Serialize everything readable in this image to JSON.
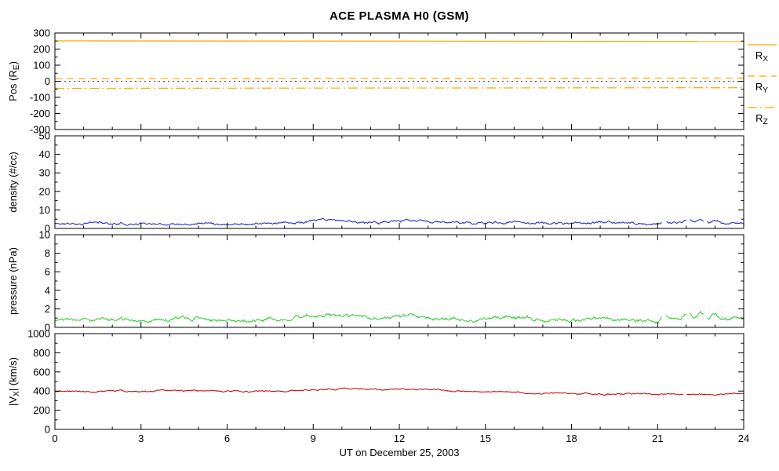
{
  "chart_data": {
    "type": "line",
    "title": "ACE PLASMA H0 (GSM)",
    "xlabel": "UT on December 25, 2003",
    "x_range": [
      0,
      24
    ],
    "x_ticks": [
      0,
      3,
      6,
      9,
      12,
      15,
      18,
      21,
      24
    ],
    "x_minor_step": 1,
    "frame_color": "#000000",
    "grid": false,
    "legend_position": "right-of-position-panel",
    "panels": [
      {
        "name": "position",
        "ylabel": "Pos (R_E)",
        "ylim": [
          -300,
          300
        ],
        "yticks": [
          -300,
          -200,
          -100,
          0,
          100,
          200,
          300
        ],
        "y_minor_step": 50,
        "series": [
          {
            "name": "rx",
            "label": "R_X",
            "color": "#FFA500",
            "style": "solid",
            "width": 1.3,
            "x": [
              0,
              24
            ],
            "values": [
              251,
              247
            ]
          },
          {
            "name": "ry",
            "label": "R_Y",
            "color": "#FFA500",
            "style": "dash",
            "width": 1.2,
            "x": [
              0,
              24
            ],
            "values": [
              16,
              20
            ]
          },
          {
            "name": "rz",
            "label": "R_Z",
            "color": "#FFA500",
            "style": "dashdot",
            "width": 1.2,
            "x": [
              0,
              24
            ],
            "values": [
              -44,
              -40
            ]
          },
          {
            "name": "zero-reference",
            "label": "",
            "color": "#000000",
            "style": "dot",
            "width": 0.8,
            "x": [
              0,
              24
            ],
            "values": [
              0,
              0
            ]
          }
        ],
        "legend": {
          "color": "#FFA500",
          "items": [
            {
              "label": "R_X",
              "style": "solid"
            },
            {
              "label": "R_Y",
              "style": "dash"
            },
            {
              "label": "R_Z",
              "style": "dashdot"
            }
          ]
        }
      },
      {
        "name": "density",
        "ylabel": "density (#/cc)",
        "ylim": [
          0,
          50
        ],
        "yticks": [
          0,
          10,
          20,
          30,
          40,
          50
        ],
        "y_minor_step": 5,
        "series": [
          {
            "name": "proton-density",
            "color": "#2222CC",
            "style": "solid",
            "width": 1,
            "noise": 0.5,
            "seed": 11,
            "anchors_x": [
              0,
              0.5,
              1,
              1.5,
              2,
              2.5,
              3,
              3.5,
              4,
              4.5,
              5,
              5.5,
              6,
              6.5,
              7,
              7.5,
              8,
              8.5,
              9,
              9.25,
              9.5,
              9.75,
              10,
              10.25,
              10.5,
              11,
              11.5,
              12,
              12.25,
              12.5,
              12.75,
              13,
              13.5,
              14,
              14.5,
              15,
              15.5,
              16,
              16.5,
              17,
              17.5,
              18,
              18.5,
              19,
              19.5,
              20,
              20.5,
              21,
              21.3,
              21.5,
              21.7,
              22,
              22.3,
              22.5,
              22.8,
              23,
              23.3,
              23.6,
              24
            ],
            "anchors_y": [
              2.6,
              2.4,
              2.8,
              3.2,
              2.7,
              2.5,
              2.6,
              2.8,
              2.7,
              2.9,
              3.1,
              2.8,
              2.6,
              2.5,
              2.7,
              2.6,
              2.8,
              3.2,
              3.8,
              4.2,
              4.5,
              4.3,
              4.0,
              3.8,
              3.5,
              3.3,
              3.6,
              3.7,
              3.9,
              4.1,
              3.8,
              3.6,
              3.3,
              3.0,
              2.9,
              2.8,
              3.2,
              3.6,
              3.2,
              2.9,
              2.8,
              2.7,
              3.0,
              3.3,
              3.0,
              2.8,
              2.6,
              2.5,
              4.0,
              3.2,
              2.6,
              4.8,
              3.4,
              5.2,
              3.0,
              4.5,
              2.7,
              3.3,
              3.0
            ],
            "gaps": [
              [
                21.15,
                21.3
              ],
              [
                22.0,
                22.12
              ],
              [
                22.62,
                22.72
              ]
            ]
          }
        ]
      },
      {
        "name": "pressure",
        "ylabel": "pressure (nPa)",
        "ylim": [
          0,
          10
        ],
        "yticks": [
          0,
          2,
          4,
          6,
          8,
          10
        ],
        "y_minor_step": 1,
        "series": [
          {
            "name": "flow-pressure",
            "color": "#33CC33",
            "style": "solid",
            "width": 1,
            "noise": 0.15,
            "seed": 23,
            "anchors_x": [
              0,
              0.5,
              1,
              1.5,
              2,
              2.5,
              3,
              3.5,
              4,
              4.5,
              5,
              5.5,
              6,
              6.5,
              7,
              7.5,
              8,
              8.5,
              9,
              9.25,
              9.5,
              9.75,
              10,
              10.25,
              10.5,
              11,
              11.5,
              12,
              12.25,
              12.5,
              12.75,
              13,
              13.5,
              14,
              14.5,
              15,
              15.5,
              16,
              16.5,
              17,
              17.5,
              18,
              18.5,
              19,
              19.5,
              20,
              20.5,
              21,
              21.3,
              21.5,
              21.7,
              22,
              22.3,
              22.5,
              22.8,
              23,
              23.3,
              23.6,
              24
            ],
            "anchors_y": [
              0.8,
              0.7,
              0.85,
              1.0,
              0.8,
              0.75,
              0.8,
              0.85,
              0.8,
              0.9,
              0.95,
              0.85,
              0.8,
              0.75,
              0.8,
              0.8,
              0.85,
              1.0,
              1.2,
              1.35,
              1.45,
              1.4,
              1.3,
              1.2,
              1.1,
              1.0,
              1.1,
              1.15,
              1.25,
              1.4,
              1.2,
              1.1,
              1.0,
              0.9,
              0.88,
              0.85,
              1.0,
              1.1,
              1.0,
              0.9,
              0.85,
              0.8,
              0.9,
              1.0,
              0.9,
              0.85,
              0.8,
              0.75,
              1.3,
              1.0,
              0.8,
              1.5,
              1.05,
              1.7,
              0.9,
              1.4,
              0.8,
              1.0,
              0.9
            ],
            "gaps": [
              [
                21.15,
                21.3
              ],
              [
                22.0,
                22.12
              ],
              [
                22.62,
                22.72
              ]
            ]
          }
        ]
      },
      {
        "name": "velocity",
        "ylabel": "|V_X| (km/s)",
        "ylim": [
          0,
          1000
        ],
        "yticks": [
          0,
          200,
          400,
          600,
          800,
          1000
        ],
        "y_minor_step": 100,
        "series": [
          {
            "name": "vx-speed",
            "color": "#CC0000",
            "style": "solid",
            "width": 1,
            "noise": 6,
            "seed": 37,
            "anchors_x": [
              0,
              1,
              2,
              3,
              4,
              5,
              6,
              7,
              8,
              9,
              9.5,
              10,
              10.5,
              11,
              11.5,
              12,
              12.5,
              13,
              13.5,
              14,
              15,
              16,
              17,
              18,
              19,
              20,
              21,
              21.5,
              22,
              22.5,
              23,
              23.5,
              24
            ],
            "anchors_y": [
              400,
              402,
              400,
              398,
              400,
              401,
              399,
              400,
              403,
              412,
              420,
              428,
              424,
              416,
              412,
              416,
              422,
              418,
              410,
              400,
              392,
              388,
              382,
              378,
              374,
              372,
              368,
              366,
              362,
              360,
              364,
              372,
              380
            ],
            "gaps": [
              [
                21.9,
                22.0
              ]
            ]
          }
        ]
      }
    ]
  }
}
